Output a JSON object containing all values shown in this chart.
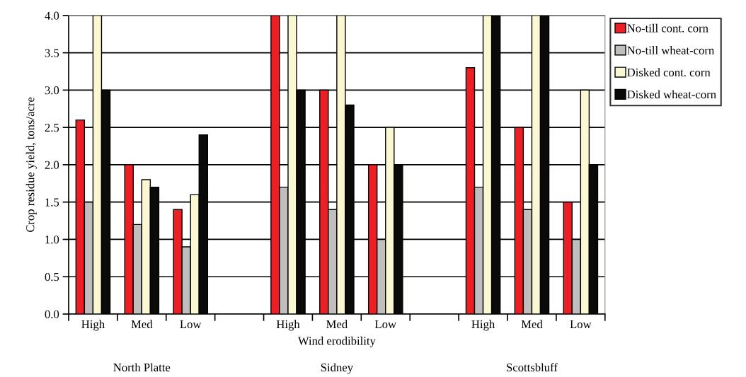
{
  "chart_data": {
    "type": "bar",
    "xlabel": "Wind erodibility",
    "ylabel": "Crop residue yield, tons/acre",
    "categories": [
      "High",
      "Med",
      "Low",
      null,
      "High",
      "Med",
      "Low",
      null,
      "High",
      "Med",
      "Low"
    ],
    "series": [
      {
        "name": "No-till cont. corn",
        "color": "#ec1f24",
        "values": [
          2.6,
          2.0,
          1.4,
          null,
          4.0,
          3.0,
          2.0,
          null,
          3.3,
          2.5,
          1.5
        ]
      },
      {
        "name": "No-till wheat-corn",
        "color": "#c0bfbd",
        "values": [
          1.5,
          1.2,
          0.9,
          null,
          1.7,
          1.4,
          1.0,
          null,
          1.7,
          1.4,
          1.0
        ]
      },
      {
        "name": "Disked cont. corn",
        "color": "#faf8d2",
        "values": [
          4.0,
          1.8,
          1.6,
          null,
          4.0,
          4.0,
          2.5,
          null,
          4.0,
          4.0,
          3.0
        ]
      },
      {
        "name": "Disked wheat-corn",
        "color": "#0a0a08",
        "values": [
          3.0,
          1.7,
          2.4,
          null,
          3.0,
          2.8,
          2.0,
          null,
          4.0,
          4.0,
          2.0
        ]
      }
    ],
    "ylim": [
      0,
      4
    ],
    "yticks": [
      {
        "value": 0,
        "label": "0.0"
      },
      {
        "value": 0.5,
        "label": "0.5"
      },
      {
        "value": 1,
        "label": "1.0"
      },
      {
        "value": 1.5,
        "label": "1.5"
      },
      {
        "value": 2,
        "label": "2.0"
      },
      {
        "value": 2.5,
        "label": "2.5"
      },
      {
        "value": 3,
        "label": "3.0"
      },
      {
        "value": 3.5,
        "label": "3.5"
      },
      {
        "value": 4,
        "label": "4.0"
      }
    ],
    "grid": "y",
    "legend": "top right",
    "annotations": [
      "North Platte",
      "Sidney",
      "Scottsbluff"
    ]
  }
}
